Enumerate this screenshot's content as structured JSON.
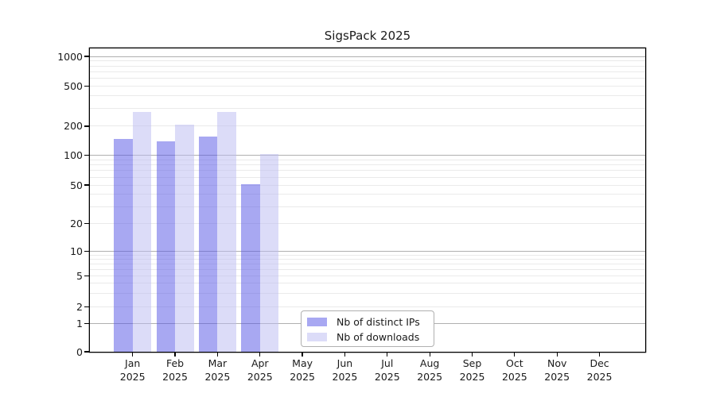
{
  "chart_data": {
    "type": "bar",
    "title": "SigsPack 2025",
    "categories": [
      "Jan 2025",
      "Feb 2025",
      "Mar 2025",
      "Apr 2025",
      "May 2025",
      "Jun 2025",
      "Jul 2025",
      "Aug 2025",
      "Sep 2025",
      "Oct 2025",
      "Nov 2025",
      "Dec 2025"
    ],
    "series": [
      {
        "name": "Nb of distinct IPs",
        "color": "#a8a8f2",
        "fill": "rgba(81,81,229,0.5)",
        "values": [
          148,
          140,
          157,
          51,
          0,
          0,
          0,
          0,
          0,
          0,
          0,
          0
        ]
      },
      {
        "name": "Nb of downloads",
        "color": "#dcdcf8",
        "fill": "rgba(185,185,241,0.5)",
        "values": [
          277,
          208,
          277,
          103,
          0,
          0,
          0,
          0,
          0,
          0,
          0,
          0
        ]
      }
    ],
    "yscale": "symlog",
    "yticks": [
      0,
      1,
      2,
      5,
      10,
      20,
      50,
      100,
      200,
      500,
      1000
    ],
    "ylim": [
      0,
      1200
    ],
    "xlabel": "",
    "ylabel": "",
    "grid": true,
    "legend": {
      "position": "lower-center-inside",
      "labels": [
        "Nb of distinct IPs",
        "Nb of downloads"
      ]
    },
    "colors": {
      "major_grid": "#b0b0b0",
      "minor_grid": "#eaeaea",
      "spine": "#000000",
      "text": "#1a1a1a",
      "background": "#ffffff"
    }
  }
}
